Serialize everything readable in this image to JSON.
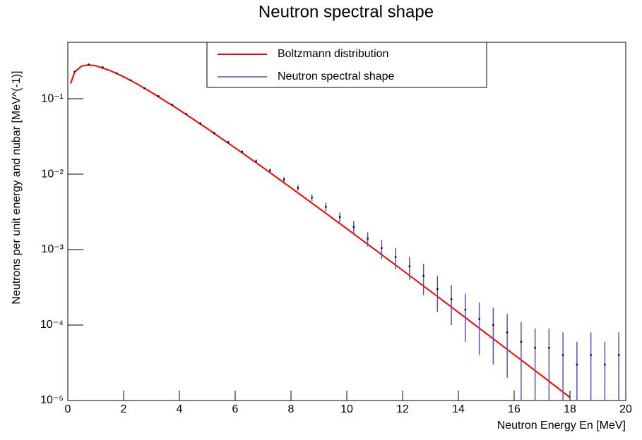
{
  "chart_data": {
    "type": "line",
    "title": "Neutron spectral shape",
    "x_label": "Neutron Energy En [MeV]",
    "y_label": "Neutrons per unit energy and nubar [MeV^(-1)]",
    "xlim": [
      0,
      20
    ],
    "ylim": [
      1e-05,
      0.56
    ],
    "yscale": "log",
    "xticks": [
      0,
      2,
      4,
      6,
      8,
      10,
      12,
      14,
      16,
      18,
      20
    ],
    "yticks": [
      {
        "value": 1e-05,
        "label": "10⁻⁵"
      },
      {
        "value": 0.0001,
        "label": "10⁻⁴"
      },
      {
        "value": 0.001,
        "label": "10⁻³"
      },
      {
        "value": 0.01,
        "label": "10⁻²"
      },
      {
        "value": 0.1,
        "label": "10⁻¹"
      }
    ],
    "legend": "top",
    "series": [
      {
        "name": "Boltzmann distribution",
        "color": "#ff0000",
        "style": "line",
        "x": [
          0.1,
          0.25,
          0.5,
          0.75,
          1,
          1.5,
          2,
          2.5,
          3,
          4,
          5,
          6,
          7,
          8,
          9,
          10,
          11,
          12,
          13,
          14,
          15,
          16,
          17,
          18
        ],
        "values": [
          0.159,
          0.228,
          0.272,
          0.281,
          0.274,
          0.238,
          0.196,
          0.156,
          0.1215,
          0.0711,
          0.0402,
          0.0223,
          0.01222,
          0.00661,
          0.00355,
          0.001895,
          0.001007,
          0.000533,
          0.000281,
          0.0001477,
          7.74e-05,
          4.05e-05,
          2.12e-05,
          1.1e-05
        ]
      },
      {
        "name": "Neutron spectral shape",
        "color": "#5a50b4",
        "style": "errorbar",
        "x": [
          0.25,
          0.75,
          1.25,
          1.75,
          2.25,
          2.75,
          3.25,
          3.75,
          4.25,
          4.75,
          5.25,
          5.75,
          6.25,
          6.75,
          7.25,
          7.75,
          8.25,
          8.75,
          9.25,
          9.75,
          10.25,
          10.75,
          11.25,
          11.75,
          12.25,
          12.75,
          13.25,
          13.75,
          14.25,
          14.75,
          15.25,
          15.75,
          16.25,
          16.75,
          17.25,
          17.75,
          18.25,
          18.75,
          19.25,
          19.75
        ],
        "values": [
          0.23,
          0.285,
          0.262,
          0.218,
          0.176,
          0.138,
          0.108,
          0.083,
          0.063,
          0.047,
          0.035,
          0.0265,
          0.0198,
          0.0148,
          0.0112,
          0.0085,
          0.0066,
          0.0049,
          0.0037,
          0.0027,
          0.002,
          0.0014,
          0.00105,
          0.0008,
          0.0006,
          0.00045,
          0.0003,
          0.00022,
          0.00016,
          0.00012,
          0.0001,
          8e-05,
          6e-05,
          5e-05,
          5e-05,
          4e-05,
          3e-05,
          4e-05,
          3e-05,
          4e-05
        ],
        "errors": [
          0.005,
          0.005,
          0.005,
          0.004,
          0.004,
          0.003,
          0.003,
          0.003,
          0.002,
          0.002,
          0.0015,
          0.0012,
          0.001,
          0.0009,
          0.0008,
          0.0007,
          0.0006,
          0.0005,
          0.0005,
          0.0004,
          0.0004,
          0.0003,
          0.0003,
          0.00025,
          0.0002,
          0.0002,
          0.00015,
          0.00012,
          0.0001,
          8e-05,
          7e-05,
          6e-05,
          5e-05,
          4e-05,
          4e-05,
          4e-05,
          3e-05,
          4e-05,
          3e-05,
          4e-05
        ]
      }
    ]
  }
}
